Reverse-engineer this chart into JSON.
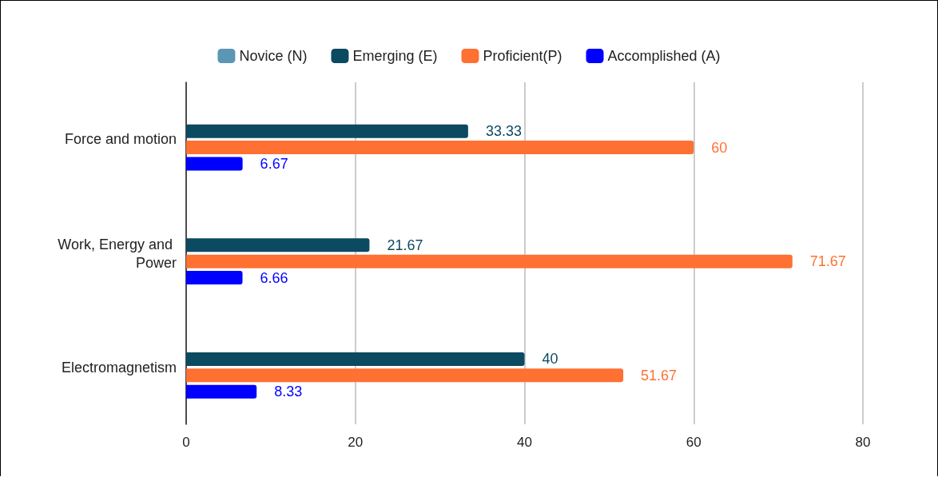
{
  "chart_data": {
    "type": "bar",
    "orientation": "horizontal",
    "categories": [
      "Force and motion",
      "Work, Energy and Power",
      "Electromagnetism"
    ],
    "series": [
      {
        "name": "Novice (N)",
        "color": "#5b97b5",
        "values": [
          null,
          null,
          null
        ]
      },
      {
        "name": "Emerging (E)",
        "color": "#0c4a61",
        "values": [
          33.33,
          21.67,
          40
        ]
      },
      {
        "name": "Proficient(P)",
        "color": "#ff7033",
        "values": [
          60,
          71.67,
          51.67
        ]
      },
      {
        "name": "Accomplished (A)",
        "color": "#0000ff",
        "values": [
          6.67,
          6.66,
          8.33
        ]
      }
    ],
    "xlim": [
      0,
      80
    ],
    "xticks": [
      0,
      20,
      40,
      60,
      80
    ],
    "grid": "x",
    "legend": "top",
    "data_labels": true
  }
}
